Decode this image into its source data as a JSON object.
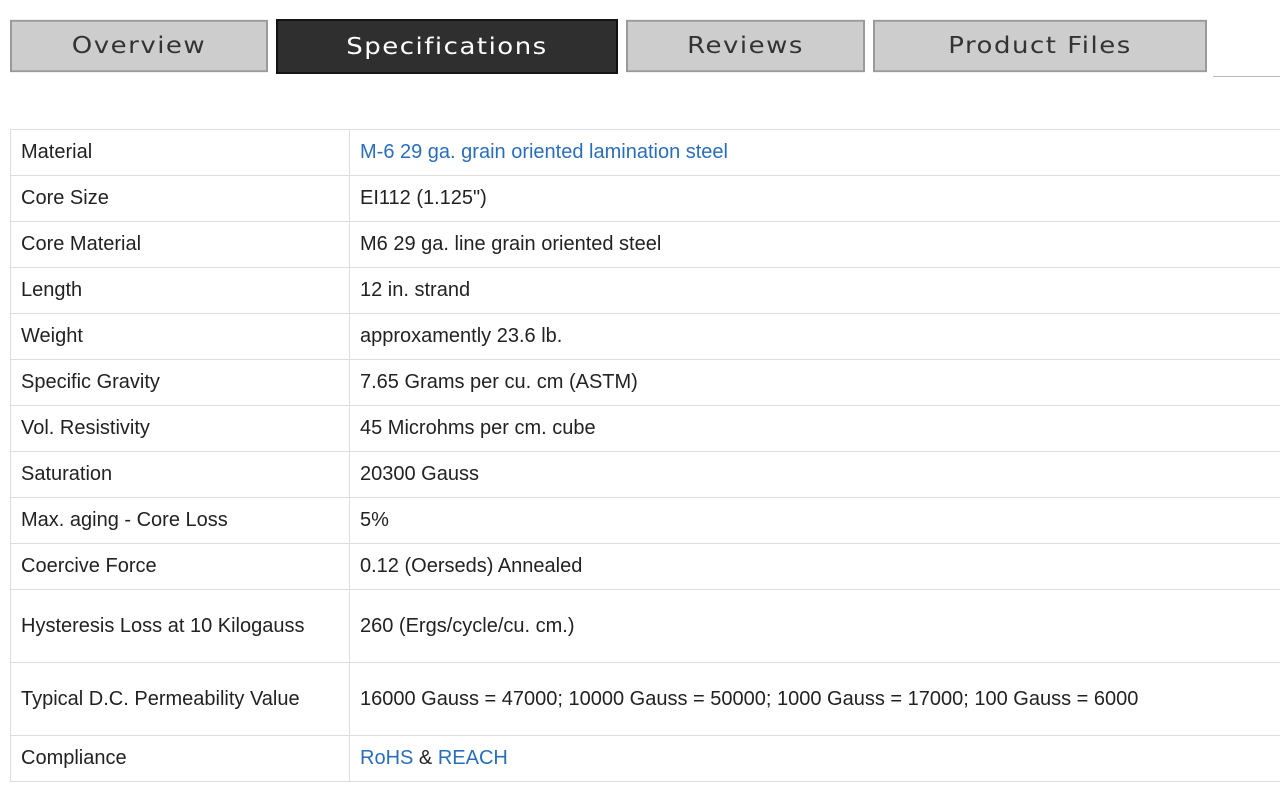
{
  "tabs": [
    {
      "label": "Overview"
    },
    {
      "label": "Specifications",
      "active": true
    },
    {
      "label": "Reviews"
    },
    {
      "label": "Product Files"
    }
  ],
  "specs": [
    {
      "key": "Material",
      "value": "M-6 29 ga. grain oriented lamination steel",
      "link": true
    },
    {
      "key": "Core Size",
      "value": "EI112 (1.125\")"
    },
    {
      "key": "Core Material",
      "value": "M6 29 ga. line grain oriented steel"
    },
    {
      "key": "Length",
      "value": "12 in. strand"
    },
    {
      "key": "Weight",
      "value": "approxamently 23.6 lb."
    },
    {
      "key": "Specific Gravity",
      "value": "7.65 Grams per cu. cm (ASTM)"
    },
    {
      "key": "Vol. Resistivity",
      "value": "45 Microhms per cm. cube"
    },
    {
      "key": "Saturation",
      "value": "20300 Gauss"
    },
    {
      "key": "Max. aging - Core Loss",
      "value": "5%"
    },
    {
      "key": "Coercive Force",
      "value": "0.12 (Oerseds) Annealed"
    },
    {
      "key": "Hysteresis Loss at 10 Kilogauss",
      "value": "260 (Ergs/cycle/cu. cm.)"
    },
    {
      "key": "Typical D.C. Permeability Value",
      "value": "16000 Gauss = 47000; 10000 Gauss = 50000; 1000 Gauss = 17000; 100 Gauss = 6000"
    }
  ],
  "compliance": {
    "key": "Compliance",
    "rohs": "RoHS",
    "amp": "&",
    "reach": "REACH"
  },
  "colors": {
    "link": "#2a6ebb",
    "active_tab": "#2f2f2f",
    "tab": "#cdcdcd"
  }
}
